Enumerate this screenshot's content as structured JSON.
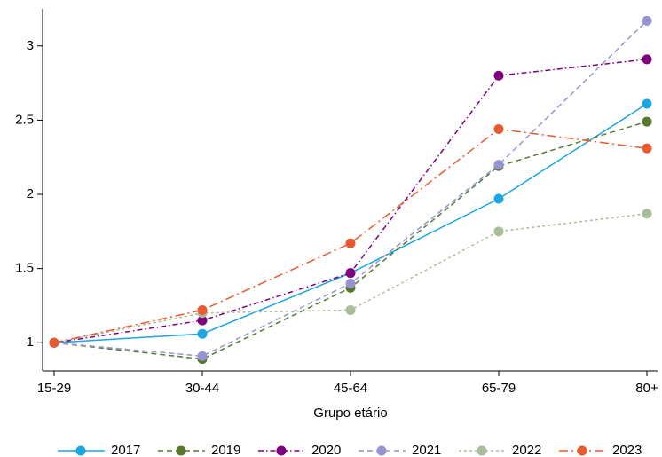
{
  "chart_data": {
    "type": "line",
    "x_label": "Grupo etário",
    "categories": [
      "15-29",
      "30-44",
      "45-64",
      "65-79",
      "80+"
    ],
    "series": [
      {
        "name": "2017",
        "color": "#1ba6e0",
        "style": "solid",
        "values": [
          1,
          1.06,
          1.47,
          1.97,
          2.61
        ]
      },
      {
        "name": "2019",
        "color": "#55792f",
        "style": "dashed",
        "values": [
          1,
          0.89,
          1.37,
          2.19,
          2.49
        ]
      },
      {
        "name": "2020",
        "color": "#7e007e",
        "style": "dashdot",
        "values": [
          1,
          1.15,
          1.47,
          2.8,
          2.91
        ]
      },
      {
        "name": "2021",
        "color": "#9894d4",
        "style": "dashed",
        "values": [
          1,
          0.91,
          1.4,
          2.2,
          3.17
        ]
      },
      {
        "name": "2022",
        "color": "#a8bd98",
        "style": "dotted",
        "values": [
          1,
          1.2,
          1.22,
          1.75,
          1.87
        ]
      },
      {
        "name": "2023",
        "color": "#ea5a2e",
        "style": "longdashdot",
        "values": [
          1,
          1.22,
          1.67,
          2.44,
          2.31
        ]
      }
    ],
    "ylim": [
      0.81,
      3.25
    ],
    "yticks": [
      1,
      1.5,
      2,
      2.5,
      3
    ],
    "grid": false,
    "legend": "bottom"
  }
}
